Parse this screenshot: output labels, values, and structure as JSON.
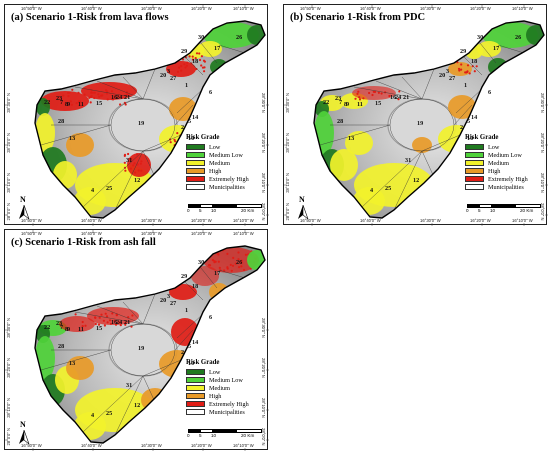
{
  "panels": [
    {
      "title": "(a) Scenario 1-Risk from lava flows",
      "variant": "lava"
    },
    {
      "title": "(b) Scenario 1-Risk from PDC",
      "variant": "pdc"
    },
    {
      "title": "(c) Scenario 1-Risk from ash fall",
      "variant": "ash"
    }
  ],
  "legend": {
    "title": "Risk Grade",
    "items": [
      {
        "label": "Low",
        "color": "#1f7a1f"
      },
      {
        "label": "Medium Low",
        "color": "#4fd23a"
      },
      {
        "label": "Medium",
        "color": "#f2f22b"
      },
      {
        "label": "High",
        "color": "#e89a28"
      },
      {
        "label": "Extremely High",
        "color": "#e01d16"
      },
      {
        "label": "Municipalities",
        "color": "#ffffff"
      }
    ]
  },
  "scale_bar": {
    "labels": [
      "0",
      "5",
      "10",
      "20 Km"
    ]
  },
  "north_label": "N",
  "longitude_ticks": [
    "16°50'0\" W",
    "16°40'0\" W",
    "16°30'0\" W",
    "16°20'0\" W",
    "16°10'0\" W"
  ],
  "latitude_ticks": [
    "28°30'0\" N",
    "28°20'0\" N",
    "28°10'0\" N",
    "28°0'0\" N"
  ],
  "municipality_ids": [
    "30",
    "17",
    "26",
    "29",
    "18",
    "3",
    "27",
    "20",
    "23",
    "7",
    "6",
    "22",
    "8",
    "9",
    "11",
    "15",
    "16",
    "24",
    "21",
    "1",
    "5",
    "28",
    "19",
    "2",
    "14",
    "13",
    "10",
    "31",
    "25",
    "4",
    "12"
  ]
}
